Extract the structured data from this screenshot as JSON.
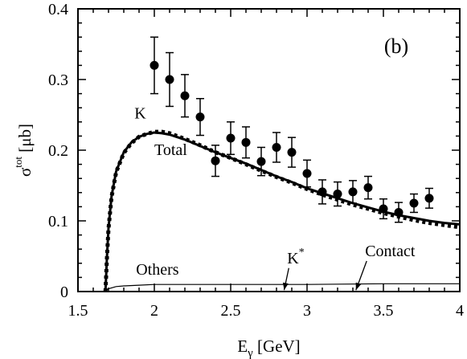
{
  "chart_data": {
    "type": "scatter",
    "panel_label": "(b)",
    "xlabel": {
      "base": "E",
      "sub": "γ",
      "unit": " [GeV]"
    },
    "ylabel": {
      "base": "σ",
      "sup": "tot",
      "unit": " [μb]"
    },
    "xlim": [
      1.5,
      4.0
    ],
    "ylim": [
      0.0,
      0.4
    ],
    "xticks": [
      1.5,
      2.0,
      2.5,
      3.0,
      3.5,
      4.0
    ],
    "xtick_labels": [
      "1.5",
      "2",
      "2.5",
      "3",
      "3.5",
      "4"
    ],
    "yticks": [
      0.0,
      0.1,
      0.2,
      0.3,
      0.4
    ],
    "ytick_labels": [
      "0",
      "0.1",
      "0.2",
      "0.3",
      "0.4"
    ],
    "series": [
      {
        "name": "",
        "style": "points-with-errorbars",
        "x": [
          2.0,
          2.1,
          2.2,
          2.3,
          2.4,
          2.5,
          2.6,
          2.7,
          2.8,
          2.9,
          3.0,
          3.1,
          3.2,
          3.3,
          3.4,
          3.5,
          3.6,
          3.7,
          3.8
        ],
        "y": [
          0.32,
          0.3,
          0.277,
          0.247,
          0.185,
          0.217,
          0.211,
          0.184,
          0.204,
          0.197,
          0.167,
          0.141,
          0.138,
          0.141,
          0.147,
          0.117,
          0.112,
          0.125,
          0.132
        ],
        "yerr": [
          0.04,
          0.038,
          0.03,
          0.026,
          0.022,
          0.023,
          0.022,
          0.02,
          0.021,
          0.021,
          0.019,
          0.017,
          0.017,
          0.016,
          0.016,
          0.014,
          0.014,
          0.013,
          0.014
        ]
      },
      {
        "name": "Total",
        "style": "solid-thick",
        "x": [
          1.68,
          1.69,
          1.7,
          1.72,
          1.75,
          1.8,
          1.85,
          1.9,
          1.95,
          2.0,
          2.05,
          2.1,
          2.2,
          2.3,
          2.4,
          2.5,
          2.6,
          2.7,
          2.8,
          2.9,
          3.0,
          3.1,
          3.2,
          3.3,
          3.4,
          3.5,
          3.6,
          3.7,
          3.8,
          3.9,
          4.0
        ],
        "y": [
          0.0,
          0.05,
          0.09,
          0.135,
          0.17,
          0.197,
          0.211,
          0.219,
          0.223,
          0.225,
          0.224,
          0.222,
          0.215,
          0.206,
          0.197,
          0.189,
          0.181,
          0.172,
          0.163,
          0.155,
          0.146,
          0.139,
          0.132,
          0.125,
          0.119,
          0.113,
          0.108,
          0.104,
          0.1,
          0.097,
          0.095
        ]
      },
      {
        "name": "K",
        "style": "dotted-thick",
        "x": [
          1.68,
          1.69,
          1.7,
          1.72,
          1.75,
          1.8,
          1.85,
          1.9,
          1.95,
          2.0,
          2.05,
          2.1,
          2.2,
          2.3,
          2.4,
          2.5,
          2.6,
          2.7,
          2.8,
          2.9,
          3.0,
          3.1,
          3.2,
          3.3,
          3.4,
          3.5,
          3.6,
          3.7,
          3.8,
          3.9,
          4.0
        ],
        "y": [
          0.0,
          0.049,
          0.089,
          0.134,
          0.169,
          0.196,
          0.21,
          0.219,
          0.223,
          0.226,
          0.226,
          0.224,
          0.216,
          0.207,
          0.197,
          0.189,
          0.18,
          0.171,
          0.162,
          0.154,
          0.145,
          0.137,
          0.13,
          0.123,
          0.117,
          0.111,
          0.106,
          0.101,
          0.097,
          0.094,
          0.091
        ]
      },
      {
        "name": "Others",
        "style": "solid-thin",
        "x": [
          1.68,
          1.7,
          1.75,
          1.8,
          1.9,
          2.0,
          2.5,
          3.0,
          3.5,
          4.0
        ],
        "y": [
          0.0,
          0.004,
          0.007,
          0.008,
          0.009,
          0.01,
          0.01,
          0.01,
          0.011,
          0.011
        ]
      }
    ],
    "annotations": [
      {
        "text": "K",
        "x": 1.87,
        "y": 0.245
      },
      {
        "text": "Total",
        "x": 2.0,
        "y": 0.193
      },
      {
        "text": "Others",
        "x": 1.88,
        "y": 0.024
      },
      {
        "text": "K",
        "sup": "*",
        "x": 2.87,
        "y": 0.04,
        "arrow_to": [
          2.85,
          0.002
        ]
      },
      {
        "text": "Contact",
        "x": 3.38,
        "y": 0.05,
        "arrow_to": [
          3.32,
          0.002
        ]
      }
    ]
  }
}
